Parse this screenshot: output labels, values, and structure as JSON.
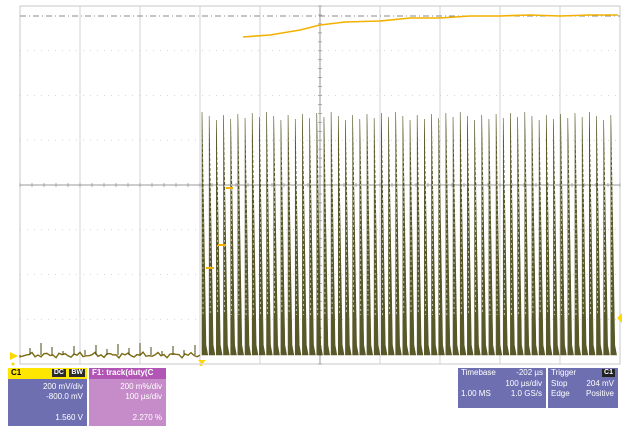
{
  "channel_c1": {
    "name": "C1",
    "badge_dc": "DC",
    "badge_bw": "BW",
    "vdiv": "200 mV/div",
    "offset": "-800.0 mV",
    "value": "1.560 V",
    "color": "#ffd800"
  },
  "math_f1": {
    "name": "F1: track(duty(C",
    "vdiv": "200 m%/div",
    "hdiv": "100 µs/div",
    "value": "2.270 %",
    "color": "#c77ac0"
  },
  "timebase": {
    "label": "Timebase",
    "delay": "-202 µs",
    "hdiv": "100 µs/div",
    "samples": "1.00 MS",
    "rate": "1.0 GS/s"
  },
  "trigger": {
    "label": "Trigger",
    "badge": "C1",
    "mode": "Stop",
    "level": "204 mV",
    "type": "Edge",
    "slope": "Positive"
  },
  "waveform": {
    "trace_color": "#4a4a16",
    "track_color": "#f2b100",
    "grid_color": "#c8c8c8",
    "pulse_count": 58
  }
}
